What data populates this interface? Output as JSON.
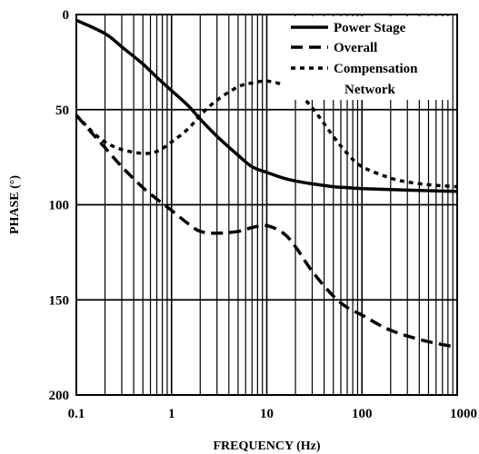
{
  "chart_data": {
    "type": "line",
    "xscale": "log",
    "xlabel": "FREQUENCY (Hz)",
    "ylabel": "PHASE (°)",
    "xlim": [
      0.1,
      1000
    ],
    "ylim": [
      0,
      200
    ],
    "y_inverted": true,
    "grid": true,
    "legend_position": "top-right",
    "x_ticks": [
      0.1,
      1,
      10,
      100,
      1000
    ],
    "x_tick_labels": [
      "0.1",
      "1",
      "10",
      "100",
      "1000"
    ],
    "y_ticks": [
      0,
      50,
      100,
      150,
      200
    ],
    "y_tick_labels": [
      "0",
      "50",
      "100",
      "150",
      "200"
    ],
    "legend": [
      {
        "series": "Power Stage",
        "text_lines": [
          "Power Stage"
        ]
      },
      {
        "series": "Overall",
        "text_lines": [
          "Overall"
        ]
      },
      {
        "series": "Compensation Network",
        "text_lines": [
          "Compensation",
          "Network"
        ]
      }
    ],
    "series": [
      {
        "name": "Power Stage",
        "style": "solid",
        "color": "#000000",
        "x": [
          0.1,
          0.2,
          0.3,
          0.5,
          0.7,
          1,
          1.5,
          2,
          3,
          5,
          7,
          10,
          15,
          20,
          30,
          50,
          70,
          100,
          200,
          300,
          500,
          1000
        ],
        "y": [
          3,
          10,
          17,
          26,
          33,
          40,
          48,
          55,
          64,
          74,
          80,
          83,
          86,
          87.5,
          89,
          90.5,
          91,
          91.5,
          92,
          92.3,
          92.6,
          93
        ]
      },
      {
        "name": "Overall",
        "style": "dashed",
        "color": "#000000",
        "x": [
          0.1,
          0.15,
          0.2,
          0.3,
          0.5,
          0.7,
          1,
          1.5,
          2,
          3,
          5,
          7,
          10,
          15,
          20,
          30,
          50,
          70,
          100,
          150,
          200,
          300,
          500,
          1000
        ],
        "y": [
          53,
          63,
          70,
          80,
          91,
          97,
          103,
          110,
          114,
          115,
          114,
          112,
          111,
          115,
          122,
          135,
          148,
          154,
          158,
          163,
          166,
          169,
          172,
          175
        ]
      },
      {
        "name": "Compensation Network",
        "style": "dotted",
        "color": "#000000",
        "x": [
          0.1,
          0.15,
          0.2,
          0.3,
          0.5,
          0.7,
          1,
          1.5,
          2,
          3,
          5,
          7,
          10,
          15,
          20,
          30,
          50,
          70,
          100,
          200,
          300,
          500,
          1000
        ],
        "y": [
          53,
          62,
          67,
          71,
          73,
          72,
          67,
          60,
          53,
          45,
          38,
          36,
          35,
          37,
          40,
          49,
          64,
          73,
          80,
          86,
          88,
          89.5,
          90.5
        ]
      }
    ]
  }
}
